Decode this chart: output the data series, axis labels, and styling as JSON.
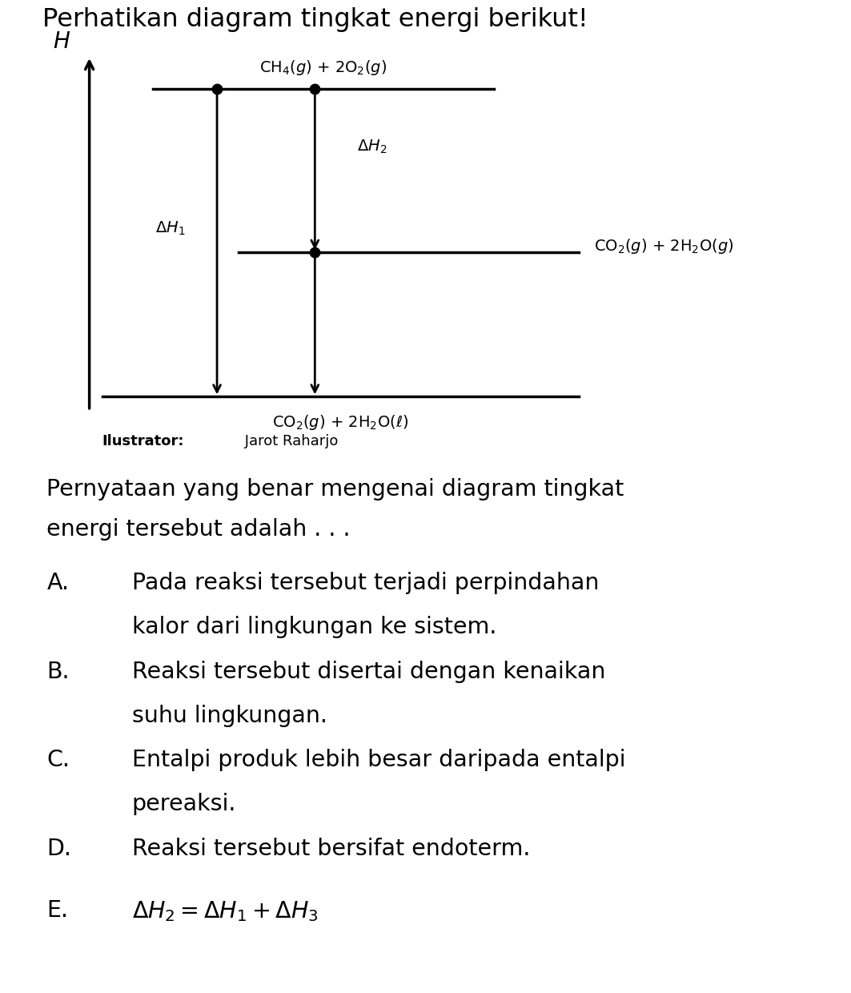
{
  "title": "Perhatikan diagram tingkat energi berikut!",
  "h_label": "H",
  "label_top": "CH$_4$($g$) + 2O$_2$($g$)",
  "label_mid": "CO$_2$($g$) + 2H$_2$O($g$)",
  "label_bot": "CO$_2$($g$) + 2H$_2$O($\\ell$)",
  "dH1_label": "$\\Delta H_1$",
  "dH2_label": "$\\Delta H_2$",
  "illustrator_bold": "Ilustrator:",
  "illustrator_normal": " Jarot Raharjo",
  "q_line1": "Pernyataan yang benar mengenai diagram tingkat",
  "q_line2": "energi tersebut adalah . . .",
  "ans_A1": "Pada reaksi tersebut terjadi perpindahan",
  "ans_A2": "kalor dari lingkungan ke sistem.",
  "ans_B1": "Reaksi tersebut disertai dengan kenaikan",
  "ans_B2": "suhu lingkungan.",
  "ans_C1": "Entalpi produk lebih besar daripada entalpi",
  "ans_C2": "pereaksi.",
  "ans_D": "Reaksi tersebut bersifat endoterm.",
  "ans_E": "$\\Delta H_2 = \\Delta H_1 + \\Delta H_3$",
  "bg_color": "#ffffff",
  "text_color": "#000000"
}
